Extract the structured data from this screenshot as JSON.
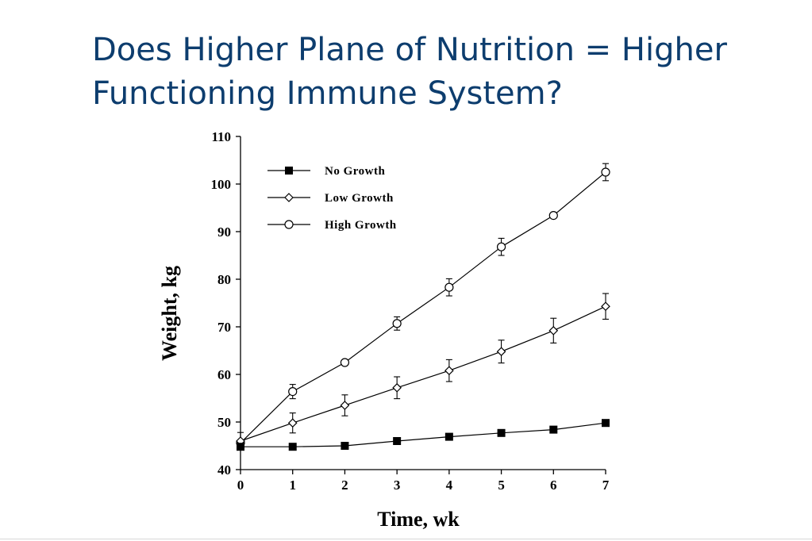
{
  "title": "Does Higher Plane of Nutrition = Higher Functioning Immune System?",
  "chart_data": {
    "type": "line",
    "xlabel": "Time, wk",
    "ylabel": "Weight, kg",
    "xlim": [
      0,
      7
    ],
    "ylim": [
      40,
      110
    ],
    "xticks": [
      "0",
      "1",
      "2",
      "3",
      "4",
      "5",
      "6",
      "7"
    ],
    "yticks": [
      "40",
      "50",
      "60",
      "70",
      "80",
      "90",
      "100",
      "110"
    ],
    "grid": false,
    "legend_position": "top-left",
    "x": [
      0,
      1,
      2,
      3,
      4,
      5,
      6,
      7
    ],
    "series": [
      {
        "name": "No Growth",
        "marker": "filled-square",
        "values": [
          44.8,
          44.8,
          45.0,
          46.0,
          46.9,
          47.7,
          48.4,
          49.8
        ],
        "error": [
          0,
          0,
          0,
          0,
          0,
          0,
          0,
          0
        ]
      },
      {
        "name": "Low Growth",
        "marker": "open-diamond",
        "values": [
          46.0,
          49.8,
          53.5,
          57.2,
          60.8,
          64.8,
          69.2,
          74.3
        ],
        "error": [
          1.8,
          2.1,
          2.2,
          2.3,
          2.3,
          2.4,
          2.6,
          2.7
        ]
      },
      {
        "name": "High Growth",
        "marker": "open-circle",
        "values": [
          45.6,
          56.4,
          62.5,
          70.7,
          78.3,
          86.8,
          93.4,
          102.5
        ],
        "error": [
          0,
          1.5,
          0,
          1.4,
          1.8,
          1.8,
          0,
          1.8
        ]
      }
    ]
  },
  "colors": {
    "title": "#0d3d6e",
    "plot": "#000000"
  }
}
